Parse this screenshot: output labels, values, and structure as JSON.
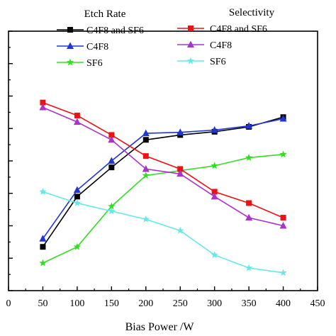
{
  "chart_data": {
    "type": "line",
    "xlabel": "Bias Power /W",
    "ylabel": "",
    "title": "",
    "xlim": [
      0,
      450
    ],
    "ylim": [
      0,
      8
    ],
    "x_ticks": [
      "0",
      "50",
      "100",
      "150",
      "200",
      "250",
      "300",
      "350",
      "400",
      "450"
    ],
    "x": [
      50,
      100,
      150,
      200,
      250,
      300,
      350,
      400
    ],
    "grid": false,
    "legend_groups": [
      {
        "heading": "Etch Rate",
        "position": "top-center"
      },
      {
        "heading": "Selectivity",
        "position": "top-right"
      }
    ],
    "series": [
      {
        "name": "C4F8 and SF6",
        "group": 0,
        "color": "#000000",
        "marker": "square",
        "values": [
          1.35,
          2.9,
          3.8,
          4.65,
          4.8,
          4.9,
          5.05,
          5.35
        ]
      },
      {
        "name": "C4F8",
        "group": 0,
        "color": "#1f35d6",
        "marker": "triangle-up",
        "values": [
          1.6,
          3.1,
          4.0,
          4.85,
          4.88,
          4.95,
          5.08,
          5.3
        ]
      },
      {
        "name": "SF6",
        "group": 0,
        "color": "#33dd22",
        "marker": "star",
        "values": [
          0.85,
          1.35,
          2.6,
          3.55,
          3.7,
          3.85,
          4.1,
          4.2
        ]
      },
      {
        "name": "C4F8 and SF6",
        "group": 1,
        "color": "#ee1111",
        "marker": "square",
        "values": [
          5.8,
          5.4,
          4.8,
          4.15,
          3.75,
          3.05,
          2.7,
          2.25
        ]
      },
      {
        "name": "C4F8",
        "group": 1,
        "color": "#aa33cc",
        "marker": "triangle-up",
        "values": [
          5.65,
          5.2,
          4.65,
          3.75,
          3.6,
          2.9,
          2.25,
          2.0
        ]
      },
      {
        "name": "SF6",
        "group": 1,
        "color": "#66e8e8",
        "marker": "star",
        "values": [
          3.05,
          2.7,
          2.45,
          2.2,
          1.85,
          1.1,
          0.7,
          0.55
        ]
      }
    ]
  }
}
